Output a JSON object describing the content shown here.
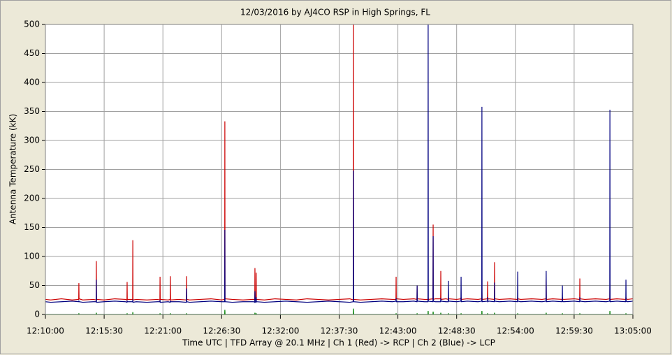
{
  "chart_data": {
    "type": "line",
    "title": "12/03/2016  by  AJ4CO RSP  in  High Springs, FL",
    "xlabel": "Time UTC   |   TFD Array @ 20.1 MHz   |   Ch 1 (Red) -> RCP   |   Ch 2 (Blue)  -> LCP",
    "ylabel": "Antenna Temperature (kK)",
    "x": [
      "12:10:00",
      "12:10:30",
      "12:11:30",
      "12:12:30",
      "12:13:07",
      "12:13:08",
      "12:13:09",
      "12:13:30",
      "12:14:30",
      "12:14:45",
      "12:14:46",
      "12:14:47",
      "12:15:30",
      "12:16:30",
      "12:17:30",
      "12:17:38",
      "12:17:39",
      "12:17:40",
      "12:18:10",
      "12:18:11",
      "12:18:12",
      "12:18:30",
      "12:19:30",
      "12:20:30",
      "12:20:43",
      "12:20:44",
      "12:20:45",
      "12:21:30",
      "12:21:41",
      "12:21:42",
      "12:21:43",
      "12:22:30",
      "12:23:12",
      "12:23:13",
      "12:23:14",
      "12:23:30",
      "12:24:30",
      "12:25:30",
      "12:26:30",
      "12:26:47",
      "12:26:48",
      "12:26:49",
      "12:27:30",
      "12:28:30",
      "12:29:30",
      "12:29:36",
      "12:29:37",
      "12:29:38",
      "12:29:43",
      "12:29:44",
      "12:29:45",
      "12:30:30",
      "12:31:30",
      "12:32:30",
      "12:33:30",
      "12:34:30",
      "12:35:30",
      "12:36:30",
      "12:37:30",
      "12:38:30",
      "12:38:50",
      "12:38:51",
      "12:38:52",
      "12:39:30",
      "12:40:30",
      "12:41:30",
      "12:42:30",
      "12:42:49",
      "12:42:50",
      "12:42:51",
      "12:43:30",
      "12:44:30",
      "12:44:47",
      "12:44:48",
      "12:44:49",
      "12:45:30",
      "12:45:49",
      "12:45:50",
      "12:45:51",
      "12:46:17",
      "12:46:18",
      "12:46:19",
      "12:46:30",
      "12:47:00",
      "12:47:01",
      "12:47:02",
      "12:47:30",
      "12:47:43",
      "12:47:44",
      "12:47:45",
      "12:48:30",
      "12:48:54",
      "12:48:55",
      "12:48:56",
      "12:49:30",
      "12:50:30",
      "12:50:51",
      "12:50:52",
      "12:50:53",
      "12:51:23",
      "12:51:24",
      "12:51:25",
      "12:51:30",
      "12:52:02",
      "12:52:03",
      "12:52:04",
      "12:52:30",
      "12:53:30",
      "12:54:12",
      "12:54:13",
      "12:54:14",
      "12:54:30",
      "12:55:30",
      "12:56:30",
      "12:56:52",
      "12:56:53",
      "12:56:54",
      "12:57:30",
      "12:58:23",
      "12:58:24",
      "12:58:25",
      "12:58:30",
      "12:59:30",
      "13:00:01",
      "13:00:02",
      "13:00:03",
      "13:00:30",
      "13:01:30",
      "13:02:30",
      "13:02:50",
      "13:02:51",
      "13:02:52",
      "13:03:30",
      "13:04:20",
      "13:04:21",
      "13:04:22",
      "13:04:30",
      "13:05:00"
    ],
    "series": [
      {
        "color": "#cc0000",
        "values": [
          26,
          25,
          27,
          25,
          26,
          54,
          27,
          25,
          26,
          25,
          92,
          26,
          25,
          27,
          26,
          25,
          56,
          26,
          26,
          128,
          25,
          26,
          25,
          26,
          25,
          65,
          26,
          25,
          26,
          66,
          25,
          26,
          25,
          66,
          26,
          25,
          26,
          27,
          25,
          26,
          333,
          27,
          26,
          25,
          26,
          25,
          80,
          26,
          25,
          72,
          26,
          25,
          27,
          26,
          25,
          27,
          26,
          25,
          26,
          27,
          25,
          500,
          26,
          25,
          26,
          27,
          26,
          26,
          65,
          27,
          26,
          27,
          26,
          50,
          27,
          26,
          26,
          30,
          26,
          27,
          155,
          26,
          27,
          27,
          75,
          26,
          27,
          26,
          30,
          27,
          26,
          27,
          30,
          26,
          27,
          26,
          27,
          40,
          26,
          27,
          57,
          26,
          27,
          26,
          90,
          27,
          26,
          27,
          26,
          30,
          27,
          26,
          27,
          26,
          27,
          60,
          26,
          27,
          26,
          30,
          27,
          26,
          27,
          26,
          62,
          27,
          26,
          27,
          26,
          27,
          50,
          26,
          27,
          26,
          30,
          27,
          26,
          27
        ]
      },
      {
        "color": "#000080",
        "values": [
          22,
          21,
          22,
          23,
          22,
          24,
          22,
          21,
          22,
          22,
          60,
          21,
          22,
          23,
          22,
          21,
          24,
          22,
          22,
          26,
          21,
          22,
          21,
          22,
          22,
          25,
          21,
          22,
          21,
          24,
          22,
          22,
          21,
          45,
          22,
          21,
          22,
          23,
          22,
          22,
          146,
          22,
          21,
          22,
          22,
          21,
          40,
          22,
          21,
          30,
          22,
          21,
          22,
          23,
          22,
          21,
          22,
          23,
          22,
          21,
          22,
          248,
          22,
          21,
          22,
          23,
          22,
          23,
          28,
          22,
          22,
          23,
          22,
          50,
          23,
          22,
          22,
          500,
          23,
          22,
          135,
          23,
          22,
          22,
          28,
          23,
          22,
          22,
          58,
          23,
          22,
          23,
          65,
          22,
          23,
          22,
          23,
          358,
          22,
          23,
          30,
          22,
          23,
          22,
          55,
          23,
          22,
          23,
          22,
          74,
          23,
          22,
          23,
          22,
          23,
          75,
          22,
          23,
          22,
          50,
          23,
          22,
          23,
          22,
          30,
          23,
          22,
          23,
          22,
          23,
          353,
          22,
          23,
          22,
          60,
          23,
          22,
          23
        ]
      },
      {
        "color": "#008000",
        "values": [
          0,
          0,
          0,
          0,
          0,
          2,
          0,
          0,
          0,
          0,
          3,
          0,
          0,
          0,
          0,
          0,
          2,
          0,
          0,
          4,
          0,
          0,
          0,
          0,
          0,
          2,
          0,
          0,
          0,
          2,
          0,
          0,
          0,
          2,
          0,
          0,
          0,
          0,
          0,
          0,
          8,
          0,
          0,
          0,
          0,
          0,
          3,
          0,
          0,
          2,
          0,
          0,
          0,
          0,
          0,
          0,
          0,
          0,
          0,
          0,
          0,
          10,
          0,
          0,
          0,
          0,
          0,
          0,
          2,
          0,
          0,
          0,
          0,
          2,
          0,
          0,
          0,
          6,
          0,
          0,
          5,
          0,
          0,
          0,
          3,
          0,
          0,
          0,
          2,
          0,
          0,
          0,
          2,
          0,
          0,
          0,
          0,
          6,
          0,
          0,
          2,
          0,
          0,
          0,
          3,
          0,
          0,
          0,
          0,
          2,
          0,
          0,
          0,
          0,
          0,
          3,
          0,
          0,
          0,
          2,
          0,
          0,
          0,
          0,
          2,
          0,
          0,
          0,
          0,
          0,
          6,
          0,
          0,
          0,
          2,
          0,
          0,
          0
        ]
      }
    ],
    "xlim": [
      "12:10:00",
      "13:05:00"
    ],
    "xticks": [
      "12:10:00",
      "12:15:30",
      "12:21:00",
      "12:26:30",
      "12:32:00",
      "12:37:30",
      "12:43:00",
      "12:48:30",
      "12:54:00",
      "12:59:30",
      "13:05:00"
    ],
    "ylim": [
      0,
      500
    ],
    "yticks": [
      0,
      50,
      100,
      150,
      200,
      250,
      300,
      350,
      400,
      450,
      500
    ],
    "grid": true
  }
}
